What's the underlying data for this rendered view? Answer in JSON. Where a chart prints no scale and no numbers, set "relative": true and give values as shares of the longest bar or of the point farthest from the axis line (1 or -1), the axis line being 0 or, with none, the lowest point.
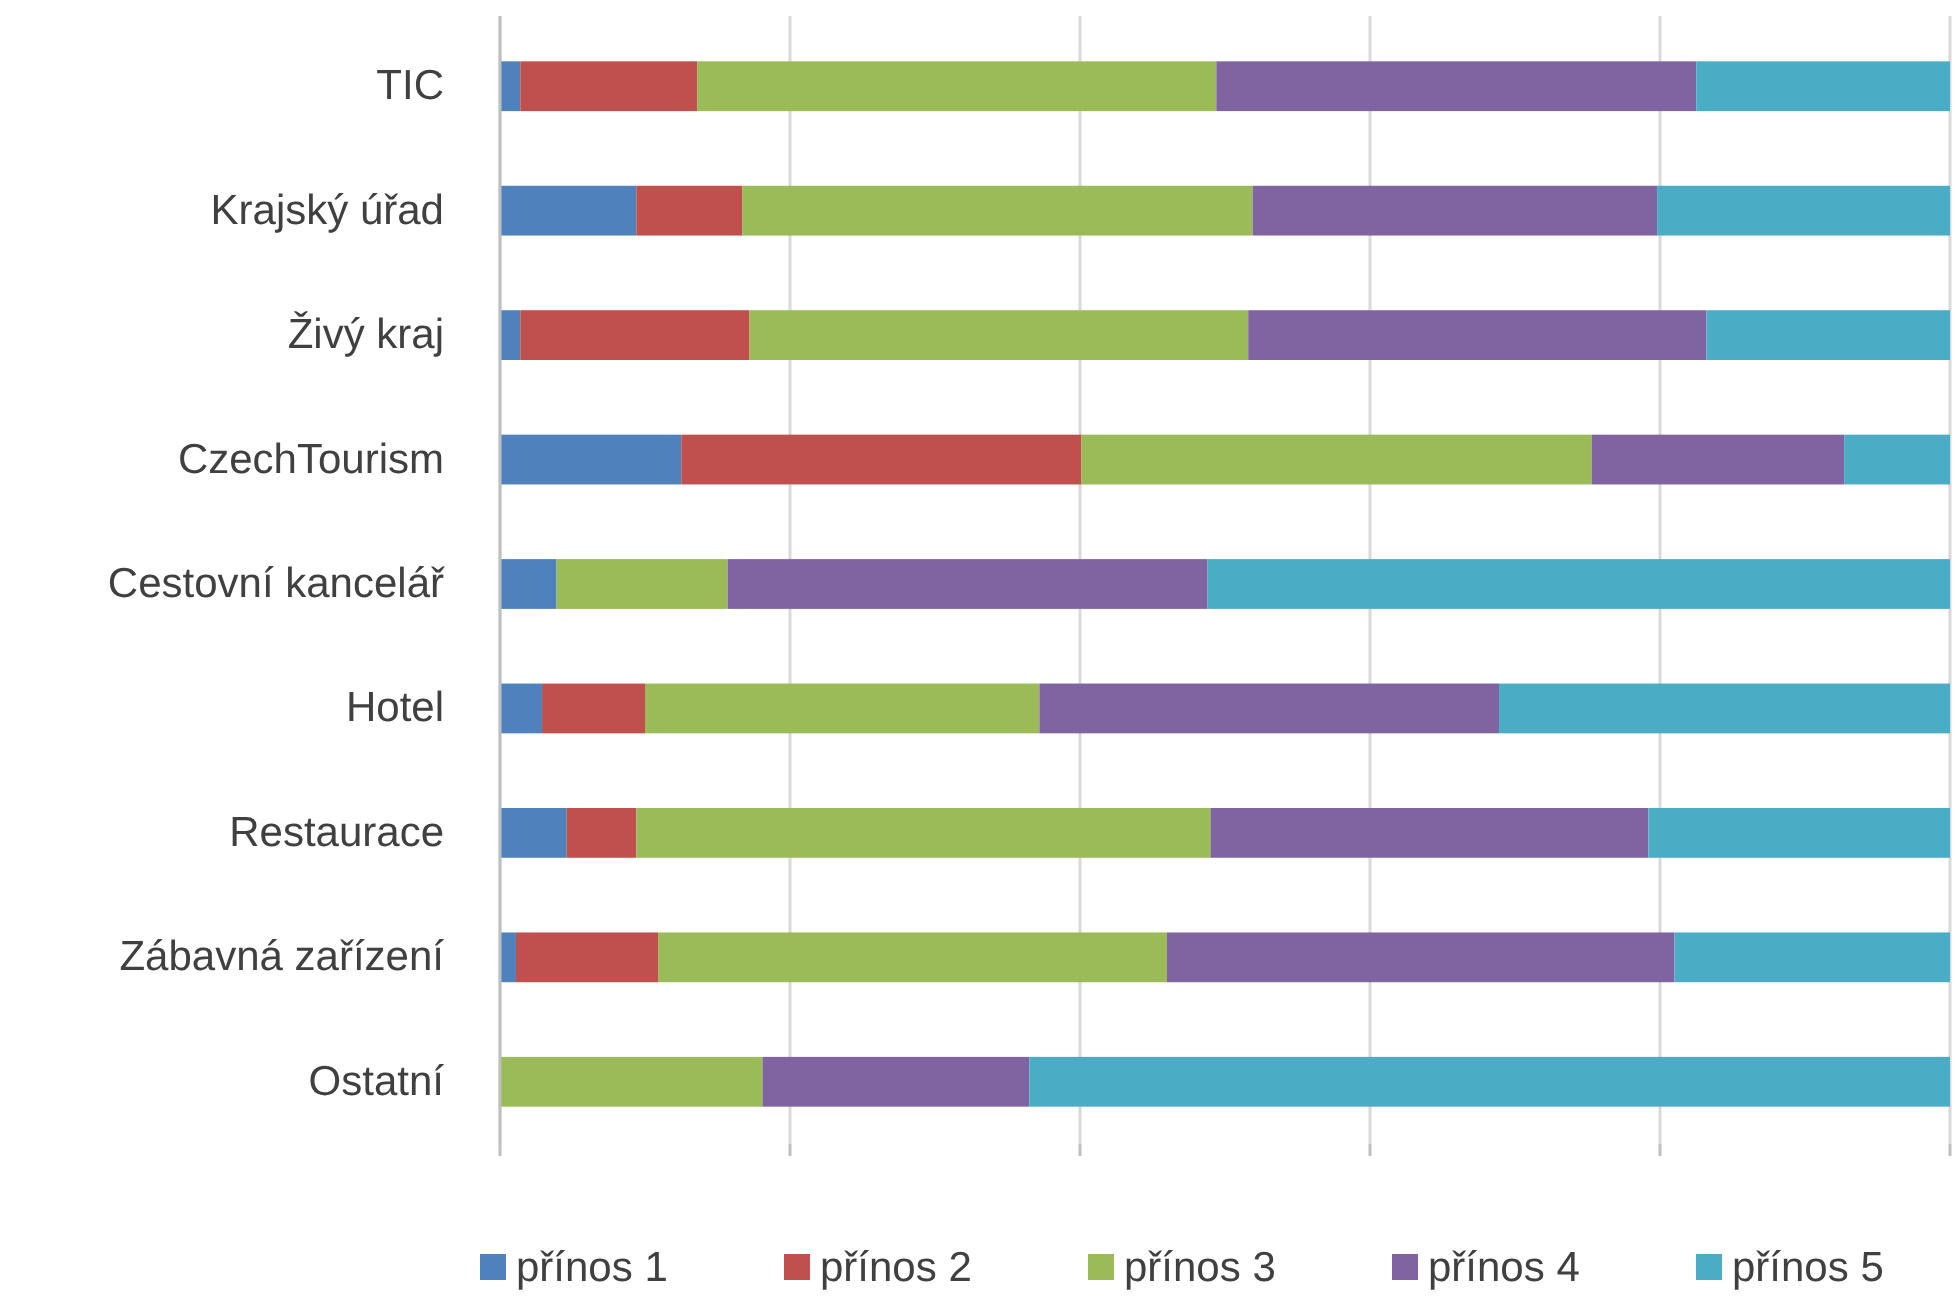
{
  "chart_data": {
    "type": "bar",
    "orientation": "horizontal",
    "stacked": true,
    "relative": true,
    "grid": "x",
    "legend": "bottom",
    "categories": [
      "TIC",
      "Krajský úřad",
      "Živý kraj",
      "CzechTourism",
      "Cestovní kancelář",
      "Hotel",
      "Restaurace",
      "Zábavná zařízení",
      "Ostatní"
    ],
    "series": [
      {
        "name": "přínos 1",
        "color": "#4f81bd",
        "values": [
          0.014,
          0.094,
          0.014,
          0.125,
          0.039,
          0.029,
          0.046,
          0.011,
          0
        ]
      },
      {
        "name": "přínos 2",
        "color": "#c0504d",
        "values": [
          0.122,
          0.073,
          0.158,
          0.276,
          0,
          0.071,
          0.048,
          0.098,
          0
        ]
      },
      {
        "name": "přínos 3",
        "color": "#9bbb59",
        "values": [
          0.358,
          0.352,
          0.344,
          0.352,
          0.118,
          0.272,
          0.396,
          0.351,
          0.181
        ]
      },
      {
        "name": "přínos 4",
        "color": "#8064a2",
        "values": [
          0.331,
          0.279,
          0.316,
          0.174,
          0.331,
          0.317,
          0.302,
          0.35,
          0.184
        ]
      },
      {
        "name": "přínos 5",
        "color": "#4bacc6",
        "values": [
          0.175,
          0.202,
          0.168,
          0.073,
          0.512,
          0.311,
          0.208,
          0.19,
          0.635
        ]
      }
    ]
  }
}
